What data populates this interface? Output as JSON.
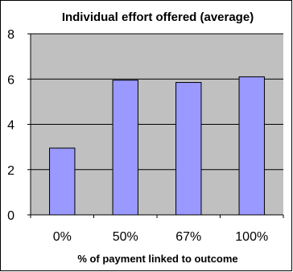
{
  "chart_data": {
    "type": "bar",
    "title": "Individual effort offered (average)",
    "xlabel": "% of payment linked to outcome",
    "ylabel": "",
    "categories": [
      "0%",
      "50%",
      "67%",
      "100%"
    ],
    "values": [
      2.95,
      5.95,
      5.85,
      6.1
    ],
    "ylim": [
      0,
      8
    ],
    "yticks": [
      0,
      2,
      4,
      6,
      8
    ],
    "grid": true,
    "legend": "none",
    "bar_color": "#9999ff",
    "plot_background": "#c0c0c0"
  }
}
